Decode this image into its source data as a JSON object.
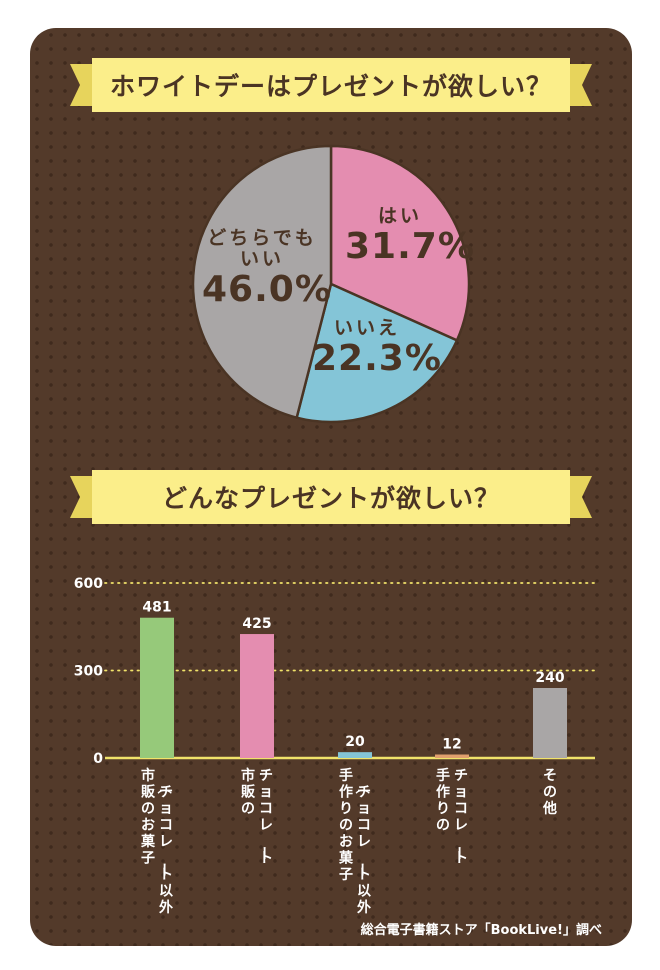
{
  "colors": {
    "background": "#533a2a",
    "ribbon": "#fbee8a",
    "ribbon_edge": "#e7d45c",
    "axis": "#f1e36a",
    "grid": "#f1e36a",
    "tick_text": "#ffffff",
    "text_dark": "#4a3424"
  },
  "banner1": {
    "title": "ホワイトデーはプレゼントが欲しい？"
  },
  "banner2": {
    "title": "どんなプレゼントが欲しい？"
  },
  "source": "総合電子書籍ストア「BookLive!」調べ",
  "chart_data": [
    {
      "type": "pie",
      "slices": [
        {
          "label": "はい",
          "value": 31.7,
          "display": "31.7%",
          "color": "#e48db0"
        },
        {
          "label": "いいえ",
          "value": 22.3,
          "display": "22.3%",
          "color": "#84c5d7"
        },
        {
          "label": "どちらでもいい",
          "display_lines": [
            "どちらでも",
            "いい"
          ],
          "value": 46.0,
          "display": "46.0%",
          "color": "#a9a6a6"
        }
      ]
    },
    {
      "type": "bar",
      "categories": [
        [
          "市販のお菓子",
          "（チョコレート以外）"
        ],
        [
          "市販の",
          "チョコレート"
        ],
        [
          "手作りのお菓子",
          "（チョコレート以外）"
        ],
        [
          "手作りの",
          "チョコレート"
        ],
        [
          "その他"
        ]
      ],
      "values": [
        481,
        425,
        20,
        12,
        240
      ],
      "colors": [
        "#96c97a",
        "#e48db0",
        "#84c5d7",
        "#e2a06d",
        "#a9a6a6"
      ],
      "ylim": [
        0,
        600
      ],
      "yticks": [
        0,
        300,
        600
      ],
      "grid": true
    }
  ]
}
